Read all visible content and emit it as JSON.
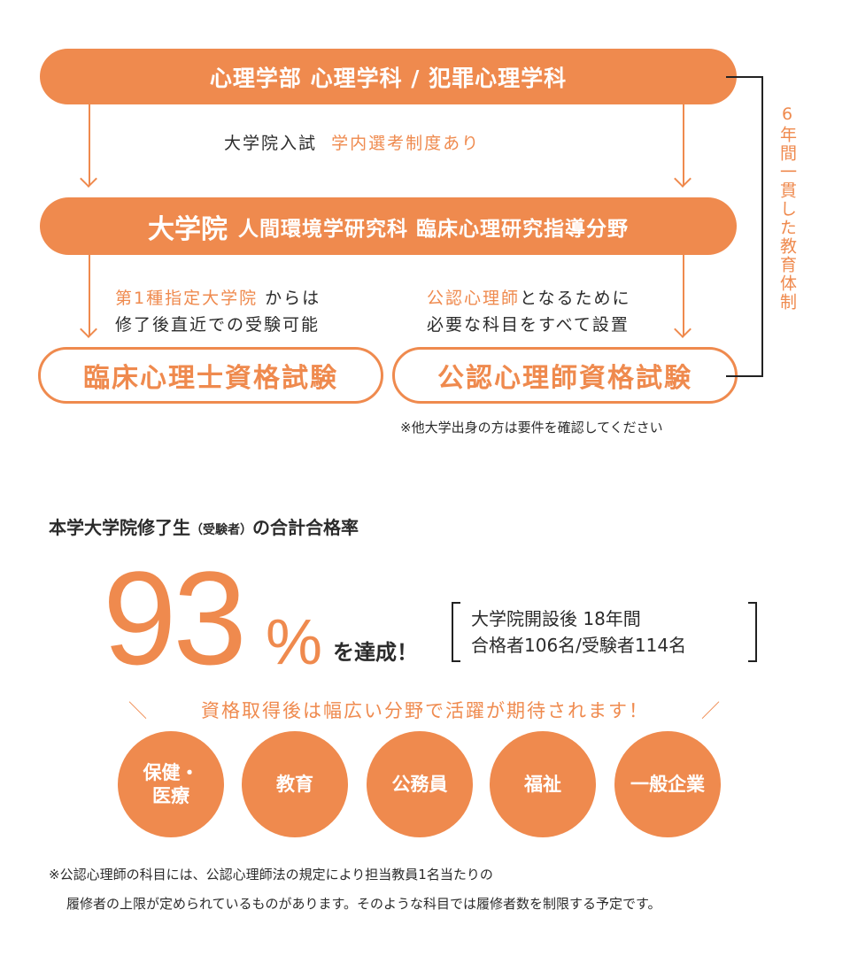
{
  "colors": {
    "accent": "#ef8a4e",
    "text": "#2b2b2b"
  },
  "flow": {
    "undergrad": "心理学部 心理学科 / 犯罪心理学科",
    "exam_label": "大学院入試",
    "exam_note": "学内選考制度あり",
    "grad_main": "大学院",
    "grad_sub": "人間環境学研究科 臨床心理研究指導分野",
    "left_note_orange": "第1種指定大学院",
    "left_note_rest": " からは",
    "left_note_line2": "修了後直近での受験可能",
    "right_note_orange": "公認心理師",
    "right_note_rest": "となるために",
    "right_note_line2": "必要な科目をすべて設置",
    "exam_left": "臨床心理士資格試験",
    "exam_right": "公認心理師資格試験",
    "side_label": "6年間一貫した教育体制",
    "note": "※他大学出身の方は要件を確認してください"
  },
  "stats": {
    "heading_a": "本学大学院修了生",
    "heading_b": "（受験者）",
    "heading_c": "の合計合格率",
    "rate": "93",
    "percent": "%",
    "achieved": "を達成！",
    "detail_line1": "大学院開設後 18年間",
    "detail_line2": "合格者106名/受験者114名",
    "tagline": "資格取得後は幅広い分野で活躍が期待されます！"
  },
  "fields": [
    "保健・医療",
    "教育",
    "公務員",
    "福祉",
    "一般企業"
  ],
  "footnote": {
    "line1": "※公認心理師の科目には、公認心理師法の規定により担当教員1名当たりの",
    "line2": "履修者の上限が定められているものがあります。そのような科目では履修者数を制限する予定です。"
  }
}
